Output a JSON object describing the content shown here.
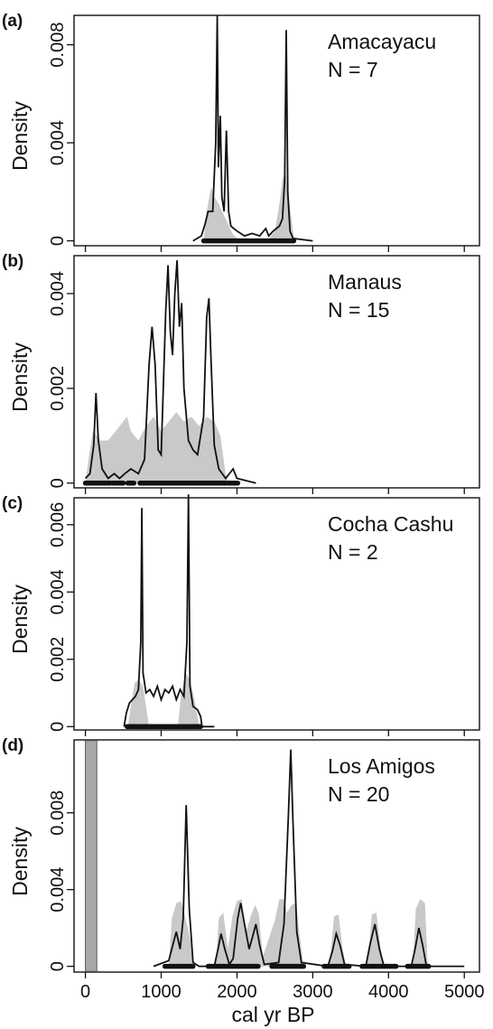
{
  "figure": {
    "xlabel": "cal yr BP",
    "ylabel": "Density"
  },
  "chart_data": [
    {
      "type": "line",
      "panel_label": "(a)",
      "site": "Amacayacu",
      "n_label": "N = 7",
      "xlabel": "cal yr BP",
      "ylabel": "Density",
      "xlim": [
        -150,
        5200
      ],
      "ylim": [
        -0.0002,
        0.0092
      ],
      "yticks": [
        0,
        0.004,
        0.008
      ],
      "ytick_labels": [
        "0",
        "0.004",
        "0.008"
      ],
      "line_color": "#111111",
      "shade_color": "#c9c9c9",
      "density": [
        [
          1420,
          0
        ],
        [
          1530,
          0.0002
        ],
        [
          1580,
          0.0007
        ],
        [
          1620,
          0.0012
        ],
        [
          1680,
          0.0012
        ],
        [
          1720,
          0.004
        ],
        [
          1740,
          0.0092
        ],
        [
          1755,
          0.003
        ],
        [
          1780,
          0.0051
        ],
        [
          1800,
          0.0018
        ],
        [
          1830,
          0.0012
        ],
        [
          1860,
          0.0045
        ],
        [
          1890,
          0.0012
        ],
        [
          1920,
          0.0006
        ],
        [
          2000,
          0.0004
        ],
        [
          2100,
          0.0002
        ],
        [
          2200,
          0.0003
        ],
        [
          2300,
          0.0002
        ],
        [
          2380,
          0.0005
        ],
        [
          2420,
          0.0002
        ],
        [
          2480,
          0.0004
        ],
        [
          2560,
          0.0006
        ],
        [
          2600,
          0.0009
        ],
        [
          2630,
          0.0025
        ],
        [
          2650,
          0.0086
        ],
        [
          2670,
          0.002
        ],
        [
          2700,
          0.0004
        ],
        [
          2740,
          0.0001
        ],
        [
          3000,
          0
        ]
      ],
      "shade": [
        [
          1560,
          0
        ],
        [
          1600,
          0.0012
        ],
        [
          1660,
          0.0022
        ],
        [
          1700,
          0.0018
        ],
        [
          1760,
          0.0015
        ],
        [
          1820,
          0.0011
        ],
        [
          1880,
          0.0007
        ],
        [
          1940,
          0.0003
        ],
        [
          2000,
          0.0001
        ],
        [
          2400,
          0
        ],
        [
          2500,
          0.0004
        ],
        [
          2560,
          0.0015
        ],
        [
          2600,
          0.0025
        ],
        [
          2640,
          0.0028
        ],
        [
          2680,
          0.0018
        ],
        [
          2740,
          0.0004
        ],
        [
          2760,
          0
        ]
      ],
      "ranges": [
        [
          1560,
          2750
        ]
      ]
    },
    {
      "type": "line",
      "panel_label": "(b)",
      "site": "Manaus",
      "n_label": "N = 15",
      "xlabel": "cal yr BP",
      "ylabel": "Density",
      "xlim": [
        -150,
        5200
      ],
      "ylim": [
        -0.0001,
        0.0048
      ],
      "yticks": [
        0,
        0.002,
        0.004
      ],
      "ytick_labels": [
        "0",
        "0.002",
        "0.004"
      ],
      "line_color": "#111111",
      "shade_color": "#c9c9c9",
      "density": [
        [
          0,
          0.0001
        ],
        [
          60,
          0.0002
        ],
        [
          110,
          0.0008
        ],
        [
          140,
          0.0019
        ],
        [
          170,
          0.0009
        ],
        [
          220,
          0.0003
        ],
        [
          300,
          0.0001
        ],
        [
          380,
          0.0002
        ],
        [
          450,
          0.0001
        ],
        [
          520,
          0.0002
        ],
        [
          600,
          0.0003
        ],
        [
          700,
          0.0002
        ],
        [
          780,
          0.0005
        ],
        [
          840,
          0.0025
        ],
        [
          880,
          0.0033
        ],
        [
          920,
          0.0025
        ],
        [
          960,
          0.0007
        ],
        [
          1000,
          0.0006
        ],
        [
          1060,
          0.0036
        ],
        [
          1090,
          0.0046
        ],
        [
          1120,
          0.0032
        ],
        [
          1150,
          0.0027
        ],
        [
          1180,
          0.004
        ],
        [
          1210,
          0.0047
        ],
        [
          1240,
          0.0033
        ],
        [
          1270,
          0.0038
        ],
        [
          1300,
          0.002
        ],
        [
          1360,
          0.0009
        ],
        [
          1420,
          0.0007
        ],
        [
          1480,
          0.0006
        ],
        [
          1560,
          0.0014
        ],
        [
          1600,
          0.0035
        ],
        [
          1630,
          0.0039
        ],
        [
          1660,
          0.0025
        ],
        [
          1700,
          0.0008
        ],
        [
          1760,
          0.0003
        ],
        [
          1850,
          0.0001
        ],
        [
          1950,
          0.0003
        ],
        [
          2000,
          0.0001
        ],
        [
          2250,
          0
        ]
      ],
      "shade": [
        [
          0,
          0
        ],
        [
          50,
          0.0006
        ],
        [
          100,
          0.0011
        ],
        [
          200,
          0.0009
        ],
        [
          300,
          0.0009
        ],
        [
          450,
          0.0012
        ],
        [
          550,
          0.0014
        ],
        [
          600,
          0.0011
        ],
        [
          700,
          0.0009
        ],
        [
          800,
          0.0012
        ],
        [
          900,
          0.0014
        ],
        [
          1000,
          0.0011
        ],
        [
          1100,
          0.0013
        ],
        [
          1200,
          0.0015
        ],
        [
          1300,
          0.0013
        ],
        [
          1400,
          0.0014
        ],
        [
          1500,
          0.0012
        ],
        [
          1600,
          0.0014
        ],
        [
          1700,
          0.0013
        ],
        [
          1780,
          0.001
        ],
        [
          1850,
          0.0002
        ],
        [
          1900,
          0
        ]
      ],
      "ranges": [
        [
          0,
          330
        ],
        [
          360,
          500
        ],
        [
          560,
          640
        ],
        [
          720,
          1850
        ],
        [
          1880,
          2010
        ]
      ]
    },
    {
      "type": "line",
      "panel_label": "(c)",
      "site": "Cocha Cashu",
      "n_label": "N = 2",
      "xlabel": "cal yr BP",
      "ylabel": "Density",
      "xlim": [
        -150,
        5200
      ],
      "ylim": [
        -0.0001,
        0.0068
      ],
      "yticks": [
        0,
        0.002,
        0.004,
        0.006
      ],
      "ytick_labels": [
        "0",
        "0.002",
        "0.004",
        "0.006"
      ],
      "line_color": "#111111",
      "shade_color": "#c9c9c9",
      "density": [
        [
          510,
          0
        ],
        [
          540,
          0.0004
        ],
        [
          580,
          0.0007
        ],
        [
          620,
          0.0008
        ],
        [
          660,
          0.0009
        ],
        [
          700,
          0.0011
        ],
        [
          730,
          0.0025
        ],
        [
          745,
          0.0065
        ],
        [
          760,
          0.0016
        ],
        [
          800,
          0.001
        ],
        [
          850,
          0.0011
        ],
        [
          900,
          0.0009
        ],
        [
          950,
          0.0012
        ],
        [
          1000,
          0.0008
        ],
        [
          1050,
          0.0011
        ],
        [
          1100,
          0.001
        ],
        [
          1150,
          0.0012
        ],
        [
          1200,
          0.0008
        ],
        [
          1250,
          0.0011
        ],
        [
          1300,
          0.0009
        ],
        [
          1340,
          0.0025
        ],
        [
          1360,
          0.0069
        ],
        [
          1380,
          0.0012
        ],
        [
          1420,
          0.0006
        ],
        [
          1480,
          0.0005
        ],
        [
          1520,
          0.0003
        ],
        [
          1540,
          0
        ],
        [
          1700,
          0
        ]
      ],
      "shade": [
        [
          560,
          0
        ],
        [
          600,
          0.0006
        ],
        [
          650,
          0.0013
        ],
        [
          700,
          0.0014
        ],
        [
          760,
          0.0012
        ],
        [
          800,
          0.0006
        ],
        [
          840,
          0
        ],
        [
          1220,
          0
        ],
        [
          1260,
          0.0009
        ],
        [
          1320,
          0.0016
        ],
        [
          1380,
          0.0014
        ],
        [
          1440,
          0.0008
        ],
        [
          1500,
          0
        ]
      ],
      "ranges": [
        [
          550,
          1520
        ]
      ]
    },
    {
      "type": "line",
      "panel_label": "(d)",
      "site": "Los Amigos",
      "n_label": "N = 20",
      "xlabel": "cal yr BP",
      "ylabel": "Density",
      "xlim": [
        -150,
        5200
      ],
      "ylim": [
        -0.0003,
        0.0118
      ],
      "yticks": [
        0,
        0.004,
        0.008
      ],
      "ytick_labels": [
        "0",
        "0.004",
        "0.008"
      ],
      "xticks": [
        0,
        1000,
        2000,
        3000,
        4000,
        5000
      ],
      "xtick_labels": [
        "0",
        "1000",
        "2000",
        "3000",
        "4000",
        "5000"
      ],
      "highlight_band": [
        0,
        150
      ],
      "line_color": "#111111",
      "shade_color": "#c9c9c9",
      "density": [
        [
          900,
          0
        ],
        [
          1100,
          0.0003
        ],
        [
          1160,
          0.0012
        ],
        [
          1200,
          0.0018
        ],
        [
          1250,
          0.0009
        ],
        [
          1290,
          0.0025
        ],
        [
          1330,
          0.0084
        ],
        [
          1370,
          0.003
        ],
        [
          1420,
          0.0002
        ],
        [
          1500,
          0
        ],
        [
          1700,
          0
        ],
        [
          1750,
          0.0009
        ],
        [
          1790,
          0.0017
        ],
        [
          1840,
          0.0009
        ],
        [
          1900,
          0.0001
        ],
        [
          1950,
          0.0004
        ],
        [
          2010,
          0.0025
        ],
        [
          2050,
          0.0033
        ],
        [
          2100,
          0.0022
        ],
        [
          2160,
          0.0009
        ],
        [
          2210,
          0.0016
        ],
        [
          2250,
          0.0022
        ],
        [
          2300,
          0.0011
        ],
        [
          2360,
          0.0001
        ],
        [
          2550,
          0.0002
        ],
        [
          2620,
          0.0022
        ],
        [
          2680,
          0.008
        ],
        [
          2710,
          0.0113
        ],
        [
          2740,
          0.0075
        ],
        [
          2790,
          0.0018
        ],
        [
          2850,
          0.0002
        ],
        [
          3200,
          0
        ],
        [
          3260,
          0.0008
        ],
        [
          3310,
          0.0017
        ],
        [
          3360,
          0.0011
        ],
        [
          3420,
          0.0001
        ],
        [
          3700,
          0
        ],
        [
          3760,
          0.0012
        ],
        [
          3820,
          0.0022
        ],
        [
          3880,
          0.0009
        ],
        [
          3940,
          0
        ],
        [
          4300,
          0
        ],
        [
          4350,
          0.0009
        ],
        [
          4400,
          0.002
        ],
        [
          4450,
          0.0011
        ],
        [
          4500,
          0
        ],
        [
          5000,
          0
        ]
      ],
      "shade": [
        [
          1100,
          0
        ],
        [
          1140,
          0.0025
        ],
        [
          1200,
          0.0033
        ],
        [
          1260,
          0.0034
        ],
        [
          1320,
          0.0025
        ],
        [
          1380,
          0.0015
        ],
        [
          1420,
          0
        ],
        [
          1720,
          0
        ],
        [
          1760,
          0.0025
        ],
        [
          1820,
          0.0028
        ],
        [
          1880,
          0.0009
        ],
        [
          1940,
          0.0026
        ],
        [
          2000,
          0.0034
        ],
        [
          2060,
          0.0035
        ],
        [
          2120,
          0.0018
        ],
        [
          2180,
          0.0026
        ],
        [
          2240,
          0.0032
        ],
        [
          2290,
          0.0027
        ],
        [
          2340,
          0.0005
        ],
        [
          2500,
          0.0024
        ],
        [
          2560,
          0.0035
        ],
        [
          2620,
          0.0035
        ],
        [
          2660,
          0.0028
        ],
        [
          2720,
          0.0032
        ],
        [
          2780,
          0.0033
        ],
        [
          2820,
          0.0018
        ],
        [
          2880,
          0
        ],
        [
          3220,
          0
        ],
        [
          3280,
          0.0026
        ],
        [
          3340,
          0.0027
        ],
        [
          3400,
          0.0008
        ],
        [
          3440,
          0
        ],
        [
          3720,
          0
        ],
        [
          3780,
          0.0027
        ],
        [
          3840,
          0.0028
        ],
        [
          3900,
          0.0008
        ],
        [
          3940,
          0
        ],
        [
          4320,
          0
        ],
        [
          4360,
          0.003
        ],
        [
          4420,
          0.0035
        ],
        [
          4480,
          0.0033
        ],
        [
          4520,
          0
        ]
      ],
      "ranges": [
        [
          1050,
          1420
        ],
        [
          1620,
          2280
        ],
        [
          2460,
          2880
        ],
        [
          3150,
          3480
        ],
        [
          3650,
          4100
        ],
        [
          4250,
          4530
        ]
      ]
    }
  ]
}
